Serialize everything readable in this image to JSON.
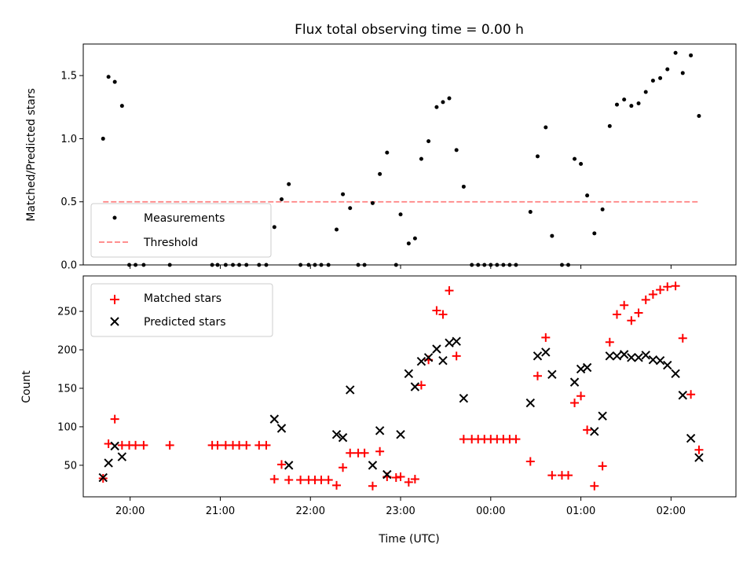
{
  "title": "Flux total observing time = 0.00 h",
  "colors": {
    "red": "#ff0000",
    "black": "#000000",
    "threshold": "#ff8080"
  },
  "chart_data": [
    {
      "type": "scatter",
      "ylabel": "Matched/Predicted stars",
      "ylim": [
        0,
        1.75
      ],
      "yticks": [
        0,
        0.5,
        1.0,
        1.5
      ],
      "ytick_labels": [
        "0.0",
        "0.5",
        "1.0",
        "1.5"
      ],
      "xlim": [
        19.48,
        26.72
      ],
      "legend_position": "lower-left",
      "series": [
        {
          "name": "Measurements",
          "marker": "dot",
          "points": [
            [
              19.7,
              1.0
            ],
            [
              19.76,
              1.49
            ],
            [
              19.83,
              1.45
            ],
            [
              19.91,
              1.26
            ],
            [
              19.99,
              0
            ],
            [
              20.06,
              0
            ],
            [
              20.15,
              0
            ],
            [
              20.44,
              0
            ],
            [
              20.91,
              0
            ],
            [
              20.97,
              0
            ],
            [
              21.06,
              0
            ],
            [
              21.14,
              0
            ],
            [
              21.21,
              0
            ],
            [
              21.29,
              0
            ],
            [
              21.43,
              0
            ],
            [
              21.51,
              0
            ],
            [
              21.6,
              0.3
            ],
            [
              21.68,
              0.52
            ],
            [
              21.76,
              0.64
            ],
            [
              21.89,
              0
            ],
            [
              21.98,
              0
            ],
            [
              22.05,
              0
            ],
            [
              22.12,
              0
            ],
            [
              22.2,
              0
            ],
            [
              22.29,
              0.28
            ],
            [
              22.36,
              0.56
            ],
            [
              22.44,
              0.45
            ],
            [
              22.53,
              0
            ],
            [
              22.6,
              0
            ],
            [
              22.69,
              0.49
            ],
            [
              22.77,
              0.72
            ],
            [
              22.85,
              0.89
            ],
            [
              22.95,
              0
            ],
            [
              23.0,
              0.4
            ],
            [
              23.09,
              0.17
            ],
            [
              23.16,
              0.21
            ],
            [
              23.23,
              0.84
            ],
            [
              23.31,
              0.98
            ],
            [
              23.4,
              1.25
            ],
            [
              23.47,
              1.29
            ],
            [
              23.54,
              1.32
            ],
            [
              23.62,
              0.91
            ],
            [
              23.7,
              0.62
            ],
            [
              23.79,
              0
            ],
            [
              23.86,
              0
            ],
            [
              23.93,
              0
            ],
            [
              24.0,
              0
            ],
            [
              24.07,
              0
            ],
            [
              24.14,
              0
            ],
            [
              24.21,
              0
            ],
            [
              24.28,
              0
            ],
            [
              24.44,
              0.42
            ],
            [
              24.52,
              0.86
            ],
            [
              24.61,
              1.09
            ],
            [
              24.68,
              0.23
            ],
            [
              24.79,
              0
            ],
            [
              24.86,
              0
            ],
            [
              24.93,
              0.84
            ],
            [
              25.0,
              0.8
            ],
            [
              25.07,
              0.55
            ],
            [
              25.15,
              0.25
            ],
            [
              25.24,
              0.44
            ],
            [
              25.32,
              1.1
            ],
            [
              25.4,
              1.27
            ],
            [
              25.48,
              1.31
            ],
            [
              25.56,
              1.26
            ],
            [
              25.64,
              1.28
            ],
            [
              25.72,
              1.37
            ],
            [
              25.8,
              1.46
            ],
            [
              25.88,
              1.48
            ],
            [
              25.96,
              1.55
            ],
            [
              26.05,
              1.68
            ],
            [
              26.13,
              1.52
            ],
            [
              26.22,
              1.66
            ],
            [
              26.31,
              1.18
            ]
          ]
        },
        {
          "name": "Threshold",
          "style": "dashed",
          "x": [
            19.7,
            26.31
          ],
          "y": [
            0.5,
            0.5
          ]
        }
      ]
    },
    {
      "type": "scatter",
      "xlabel": "Time (UTC)",
      "ylabel": "Count",
      "ylim": [
        9,
        296
      ],
      "yticks": [
        50,
        100,
        150,
        200,
        250
      ],
      "ytick_labels": [
        "50",
        "100",
        "150",
        "200",
        "250"
      ],
      "xlim": [
        19.48,
        26.72
      ],
      "xticks": [
        20,
        21,
        22,
        23,
        24,
        25,
        26
      ],
      "xtick_labels": [
        "20:00",
        "21:00",
        "22:00",
        "23:00",
        "00:00",
        "01:00",
        "02:00"
      ],
      "legend_position": "upper-left",
      "series": [
        {
          "name": "Matched stars",
          "marker": "plus",
          "points": [
            [
              19.7,
              33
            ],
            [
              19.76,
              78
            ],
            [
              19.83,
              110
            ],
            [
              19.91,
              76
            ],
            [
              19.99,
              76
            ],
            [
              20.06,
              76
            ],
            [
              20.15,
              76
            ],
            [
              20.44,
              76
            ],
            [
              20.91,
              76
            ],
            [
              20.97,
              76
            ],
            [
              21.06,
              76
            ],
            [
              21.14,
              76
            ],
            [
              21.21,
              76
            ],
            [
              21.29,
              76
            ],
            [
              21.43,
              76
            ],
            [
              21.51,
              76
            ],
            [
              21.6,
              32
            ],
            [
              21.68,
              51
            ],
            [
              21.76,
              31
            ],
            [
              21.89,
              31
            ],
            [
              21.98,
              31
            ],
            [
              22.05,
              31
            ],
            [
              22.12,
              31
            ],
            [
              22.2,
              31
            ],
            [
              22.29,
              24
            ],
            [
              22.36,
              47
            ],
            [
              22.44,
              66
            ],
            [
              22.53,
              66
            ],
            [
              22.6,
              66
            ],
            [
              22.69,
              23
            ],
            [
              22.77,
              68
            ],
            [
              22.85,
              35
            ],
            [
              22.95,
              34
            ],
            [
              23.0,
              35
            ],
            [
              23.09,
              28
            ],
            [
              23.16,
              32
            ],
            [
              23.23,
              154
            ],
            [
              23.31,
              187
            ],
            [
              23.4,
              251
            ],
            [
              23.47,
              246
            ],
            [
              23.54,
              277
            ],
            [
              23.62,
              192
            ],
            [
              23.7,
              84
            ],
            [
              23.79,
              84
            ],
            [
              23.86,
              84
            ],
            [
              23.93,
              84
            ],
            [
              24.0,
              84
            ],
            [
              24.07,
              84
            ],
            [
              24.14,
              84
            ],
            [
              24.21,
              84
            ],
            [
              24.28,
              84
            ],
            [
              24.44,
              55
            ],
            [
              24.52,
              166
            ],
            [
              24.61,
              216
            ],
            [
              24.68,
              37
            ],
            [
              24.79,
              37
            ],
            [
              24.86,
              37
            ],
            [
              24.93,
              131
            ],
            [
              25.0,
              140
            ],
            [
              25.07,
              96
            ],
            [
              25.15,
              23
            ],
            [
              25.24,
              49
            ],
            [
              25.32,
              210
            ],
            [
              25.4,
              246
            ],
            [
              25.48,
              258
            ],
            [
              25.56,
              238
            ],
            [
              25.64,
              248
            ],
            [
              25.72,
              265
            ],
            [
              25.8,
              272
            ],
            [
              25.88,
              278
            ],
            [
              25.96,
              282
            ],
            [
              26.05,
              283
            ],
            [
              26.13,
              215
            ],
            [
              26.22,
              142
            ],
            [
              26.31,
              70
            ]
          ]
        },
        {
          "name": "Predicted stars",
          "marker": "x",
          "points": [
            [
              19.7,
              34
            ],
            [
              19.76,
              53
            ],
            [
              19.83,
              75
            ],
            [
              19.91,
              61
            ],
            [
              21.6,
              110
            ],
            [
              21.68,
              98
            ],
            [
              21.76,
              50
            ],
            [
              22.29,
              90
            ],
            [
              22.36,
              86
            ],
            [
              22.44,
              148
            ],
            [
              22.69,
              50
            ],
            [
              22.77,
              95
            ],
            [
              22.85,
              38
            ],
            [
              23.0,
              90
            ],
            [
              23.09,
              169
            ],
            [
              23.16,
              152
            ],
            [
              23.23,
              185
            ],
            [
              23.31,
              190
            ],
            [
              23.4,
              201
            ],
            [
              23.47,
              186
            ],
            [
              23.54,
              209
            ],
            [
              23.62,
              211
            ],
            [
              23.7,
              137
            ],
            [
              24.44,
              131
            ],
            [
              24.52,
              192
            ],
            [
              24.61,
              197
            ],
            [
              24.68,
              168
            ],
            [
              24.93,
              158
            ],
            [
              25.0,
              175
            ],
            [
              25.07,
              177
            ],
            [
              25.15,
              94
            ],
            [
              25.24,
              114
            ],
            [
              25.32,
              192
            ],
            [
              25.4,
              192
            ],
            [
              25.48,
              194
            ],
            [
              25.56,
              190
            ],
            [
              25.64,
              190
            ],
            [
              25.72,
              193
            ],
            [
              25.8,
              187
            ],
            [
              25.88,
              186
            ],
            [
              25.96,
              180
            ],
            [
              26.05,
              169
            ],
            [
              26.13,
              141
            ],
            [
              26.22,
              85
            ],
            [
              26.31,
              60
            ]
          ]
        }
      ]
    }
  ]
}
